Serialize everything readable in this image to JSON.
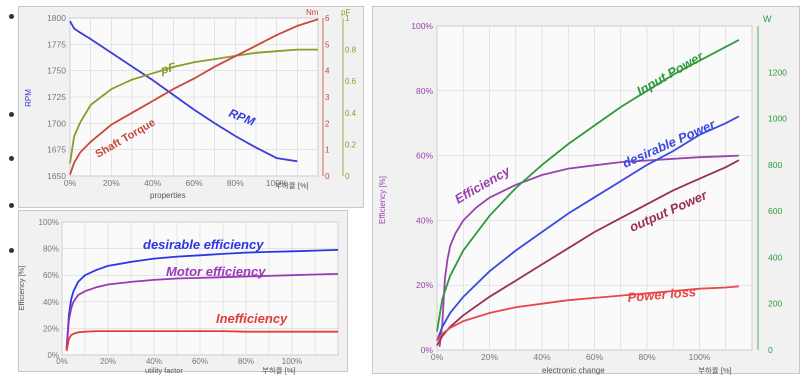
{
  "colors": {
    "rpm": "#3a3fd8",
    "pf": "#8e9a2a",
    "torque": "#c8483c",
    "efficiency": "#9a42b0",
    "input_power": "#2f9a3c",
    "desirable_power": "#3a4ae0",
    "output_power": "#9a2f56",
    "power_loss": "#e8484a",
    "desirable_efficiency": "#2a36e6",
    "motor_efficiency": "#9a3ab8",
    "inefficiency": "#e43a3a",
    "grid": "#d6d6d6",
    "tick": "#777777"
  },
  "chart_data": [
    {
      "type": "line",
      "xlabel": "properties",
      "x_unit": "부하율 [%]",
      "xlim": [
        0,
        120
      ],
      "x_ticks": [
        "0%",
        "20%",
        "40%",
        "60%",
        "80%",
        "100%"
      ],
      "y_axes": [
        {
          "label": "RPM",
          "side": "left",
          "lim": [
            1650,
            1800
          ],
          "ticks": [
            "1650",
            "1675",
            "1700",
            "1725",
            "1750",
            "1775",
            "1800"
          ]
        },
        {
          "label": "Nm",
          "side": "right",
          "lim": [
            0,
            6
          ],
          "ticks": [
            "0",
            "1",
            "2",
            "3",
            "4",
            "5",
            "6"
          ]
        },
        {
          "label": "pF",
          "side": "right",
          "lim": [
            0,
            1
          ],
          "ticks": [
            "0",
            "0.2",
            "0.4",
            "0.6",
            "0.8",
            "1"
          ]
        }
      ],
      "series": [
        {
          "name": "RPM",
          "axis": "RPM",
          "x": [
            0,
            2,
            5,
            10,
            20,
            30,
            40,
            50,
            60,
            70,
            80,
            90,
            100,
            110
          ],
          "y": [
            1797,
            1790,
            1786,
            1780,
            1767,
            1754,
            1741,
            1727,
            1713,
            1700,
            1688,
            1677,
            1667,
            1664
          ]
        },
        {
          "name": "PF",
          "axis": "pF",
          "x": [
            0,
            2,
            5,
            10,
            20,
            30,
            40,
            50,
            60,
            70,
            80,
            90,
            100,
            110,
            120
          ],
          "y": [
            0.08,
            0.25,
            0.34,
            0.45,
            0.55,
            0.61,
            0.65,
            0.69,
            0.72,
            0.74,
            0.76,
            0.78,
            0.79,
            0.8,
            0.8
          ]
        },
        {
          "name": "Shaft Torque",
          "axis": "Nm",
          "x": [
            0,
            2,
            5,
            10,
            20,
            30,
            40,
            50,
            60,
            70,
            80,
            90,
            100,
            110,
            120
          ],
          "y": [
            0.05,
            0.5,
            0.9,
            1.3,
            1.95,
            2.4,
            2.85,
            3.3,
            3.7,
            4.15,
            4.55,
            4.95,
            5.35,
            5.7,
            5.95
          ]
        }
      ]
    },
    {
      "type": "line",
      "xlabel": "utility factor",
      "x_unit": "부하율 [%]",
      "ylabel": "Efficiency [%]",
      "xlim": [
        0,
        120
      ],
      "ylim": [
        0,
        100
      ],
      "x_ticks": [
        "0%",
        "20%",
        "40%",
        "60%",
        "80%",
        "100%"
      ],
      "y_ticks": [
        "0%",
        "20%",
        "40%",
        "60%",
        "80%",
        "100%"
      ],
      "series": [
        {
          "name": "desirable efficiency",
          "x": [
            2,
            3,
            4,
            5,
            7,
            10,
            15,
            20,
            30,
            40,
            50,
            60,
            70,
            80,
            90,
            100,
            110,
            120
          ],
          "y": [
            5,
            30,
            42,
            48,
            55,
            60,
            64,
            67,
            70,
            72.5,
            74,
            75,
            76,
            77,
            77.5,
            78,
            78.5,
            79
          ]
        },
        {
          "name": "Motor efficiency",
          "x": [
            2,
            3,
            4,
            5,
            7,
            10,
            15,
            20,
            30,
            40,
            50,
            60,
            70,
            80,
            90,
            100,
            110,
            120
          ],
          "y": [
            4,
            26,
            35,
            40,
            45,
            48,
            51,
            53,
            55,
            56.5,
            57.5,
            58,
            58.5,
            59,
            59.5,
            60,
            60.5,
            61
          ]
        },
        {
          "name": "Inefficiency",
          "x": [
            2,
            3,
            4,
            5,
            7,
            10,
            15,
            20,
            30,
            40,
            50,
            60,
            70,
            80,
            90,
            100,
            110,
            120
          ],
          "y": [
            3,
            12,
            15,
            16,
            17,
            17.5,
            18,
            18,
            18,
            18,
            18,
            18,
            18,
            17.5,
            17.5,
            17.5,
            17.5,
            17.5
          ]
        }
      ]
    },
    {
      "type": "line",
      "xlabel": "electronic change",
      "x_unit": "부하율 [%]",
      "xlim": [
        0,
        120
      ],
      "x_ticks": [
        "0%",
        "20%",
        "40%",
        "60%",
        "80%",
        "100%"
      ],
      "y_axes": [
        {
          "label": "Efficiency [%]",
          "side": "left",
          "lim": [
            0,
            100
          ],
          "ticks": [
            "0%",
            "20%",
            "40%",
            "60%",
            "80%",
            "100%"
          ]
        },
        {
          "label": "W",
          "side": "right",
          "lim": [
            0,
            1400
          ],
          "ticks": [
            "0",
            "200",
            "400",
            "600",
            "800",
            "1000",
            "1200"
          ]
        }
      ],
      "series": [
        {
          "name": "Efficiency",
          "axis": "Efficiency [%]",
          "x": [
            1,
            2,
            3,
            4,
            5,
            7,
            10,
            15,
            20,
            30,
            40,
            50,
            60,
            70,
            80,
            90,
            100,
            110,
            115
          ],
          "y": [
            1,
            8,
            22,
            28,
            32,
            36,
            40,
            44,
            47,
            51,
            54,
            56,
            57,
            58,
            58.5,
            59,
            59.5,
            59.8,
            60
          ]
        },
        {
          "name": "Input Power",
          "axis": "W",
          "x": [
            0,
            2,
            5,
            10,
            20,
            30,
            40,
            50,
            60,
            70,
            80,
            90,
            100,
            110,
            115
          ],
          "y": [
            80,
            220,
            320,
            430,
            580,
            700,
            800,
            890,
            970,
            1050,
            1120,
            1190,
            1250,
            1310,
            1340
          ]
        },
        {
          "name": "desirable Power",
          "axis": "W",
          "x": [
            0,
            2,
            5,
            10,
            20,
            30,
            40,
            50,
            60,
            70,
            80,
            90,
            100,
            110,
            115
          ],
          "y": [
            40,
            100,
            160,
            230,
            340,
            430,
            510,
            590,
            660,
            730,
            800,
            860,
            930,
            980,
            1010
          ]
        },
        {
          "name": "output Power",
          "axis": "W",
          "x": [
            0,
            2,
            5,
            10,
            20,
            30,
            40,
            50,
            60,
            70,
            80,
            90,
            100,
            110,
            115
          ],
          "y": [
            20,
            60,
            100,
            150,
            230,
            300,
            370,
            440,
            510,
            570,
            630,
            690,
            740,
            790,
            820
          ]
        },
        {
          "name": "Power loss",
          "axis": "W",
          "x": [
            0,
            2,
            5,
            10,
            20,
            30,
            40,
            50,
            60,
            70,
            80,
            90,
            100,
            110,
            115
          ],
          "y": [
            40,
            70,
            95,
            125,
            160,
            185,
            200,
            215,
            225,
            235,
            245,
            255,
            265,
            270,
            275
          ]
        }
      ]
    }
  ],
  "labels": {
    "a_pf": "pF",
    "a_torque": "Shaft Torque",
    "a_rpm": "RPM",
    "b_desirable": "desirable efficiency",
    "b_motor": "Motor efficiency",
    "b_ineff": "Inefficiency",
    "c_eff": "Efficiency",
    "c_input": "Input Power",
    "c_desirable": "desirable Power",
    "c_output": "output Power",
    "c_loss": "Power loss"
  }
}
